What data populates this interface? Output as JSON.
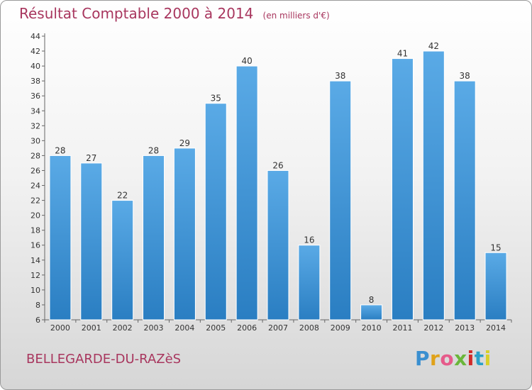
{
  "header": {
    "title": "Résultat Comptable 2000 à 2014",
    "subtitle": "(en milliers d'€)"
  },
  "footer": {
    "place": "BELLEGARDE-DU-RAZèS",
    "logo": {
      "text": "Proxiti",
      "letter_colors": [
        "#3a8fd0",
        "#e0a21a",
        "#e65a8a",
        "#6ab63a",
        "#d02a2a",
        "#2aa0c8",
        "#d8d02a"
      ]
    }
  },
  "colors": {
    "bar_top": "#5aaae6",
    "bar_bottom": "#2a7ec2",
    "title": "#a8365e"
  },
  "chart_data": {
    "type": "bar",
    "categories": [
      "2000",
      "2001",
      "2002",
      "2003",
      "2004",
      "2005",
      "2006",
      "2007",
      "2008",
      "2009",
      "2010",
      "2011",
      "2012",
      "2013",
      "2014"
    ],
    "values": [
      28,
      27,
      22,
      28,
      29,
      35,
      40,
      26,
      16,
      38,
      8,
      41,
      42,
      38,
      15
    ],
    "ylim": [
      6,
      44
    ],
    "yticks": [
      6,
      8,
      10,
      12,
      14,
      16,
      18,
      20,
      22,
      24,
      26,
      28,
      30,
      32,
      34,
      36,
      38,
      40,
      42,
      44
    ],
    "grid": false,
    "data_labels": true
  }
}
